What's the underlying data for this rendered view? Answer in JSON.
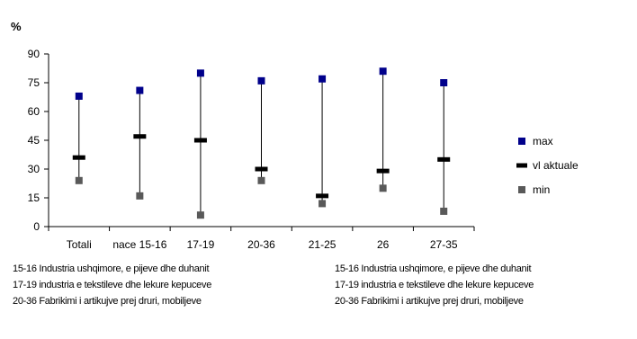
{
  "chart_data": {
    "type": "high-low",
    "ylabel": "%",
    "ylim": [
      0,
      90
    ],
    "yticks": [
      "0",
      "15",
      "30",
      "45",
      "60",
      "75",
      "90"
    ],
    "categories": [
      "Totali",
      "nace 15-16",
      "17-19",
      "20-36",
      "21-25",
      "26",
      "27-35"
    ],
    "series": [
      {
        "name": "max",
        "color": "#00008b",
        "marker": "square",
        "values": [
          68,
          71,
          80,
          76,
          77,
          81,
          75
        ]
      },
      {
        "name": "vl aktuale",
        "color": "#000000",
        "marker": "dash",
        "values": [
          36,
          47,
          45,
          30,
          16,
          29,
          35
        ]
      },
      {
        "name": "min",
        "color": "#595959",
        "marker": "square",
        "values": [
          24,
          16,
          6,
          24,
          12,
          20,
          8
        ]
      }
    ],
    "legend_position": "right",
    "grid": false
  },
  "notes": {
    "left": [
      "15-16 Industria ushqimore, e pijeve dhe duhanit",
      "17-19 industria e tekstileve dhe lekure kepuceve",
      "20-36 Fabrikimi i artikujve prej druri, mobiljeve"
    ],
    "right": [
      "15-16 Industria ushqimore, e pijeve dhe duhanit",
      "17-19 industria e tekstileve dhe lekure kepuceve",
      "20-36 Fabrikimi i artikujve prej druri, mobiljeve"
    ]
  }
}
